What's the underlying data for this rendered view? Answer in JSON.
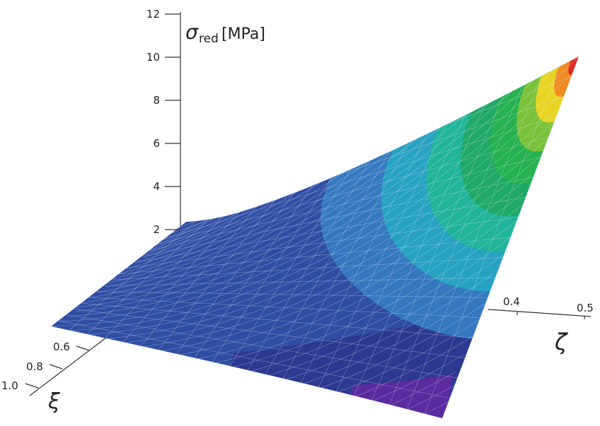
{
  "chart_data": {
    "type": "surface3d",
    "z_axis": {
      "symbol": "σ",
      "subscript": "red",
      "unit": "[MPa]",
      "ticks": [
        "2",
        "4",
        "6",
        "8",
        "10",
        "12"
      ],
      "range": [
        2,
        12
      ]
    },
    "x_axis": {
      "symbol": "ζ",
      "ticks": [
        "0.4",
        "0.5"
      ]
    },
    "y_axis": {
      "symbol": "ξ",
      "ticks": [
        "0.6",
        "0.8",
        "1.0"
      ]
    },
    "surface_peak_value": 10,
    "surface_min_value": 1,
    "color_levels": [
      {
        "color": "#5a2a9e"
      },
      {
        "color": "#2c3990"
      },
      {
        "color": "#2f4da3"
      },
      {
        "color": "#3478bf"
      },
      {
        "color": "#27a2c2"
      },
      {
        "color": "#20b49a"
      },
      {
        "color": "#1fa866"
      },
      {
        "color": "#25b14f"
      },
      {
        "color": "#79c23a"
      },
      {
        "color": "#e9d521"
      },
      {
        "color": "#f08a22"
      },
      {
        "color": "#e32a2a"
      }
    ],
    "grid": true
  }
}
